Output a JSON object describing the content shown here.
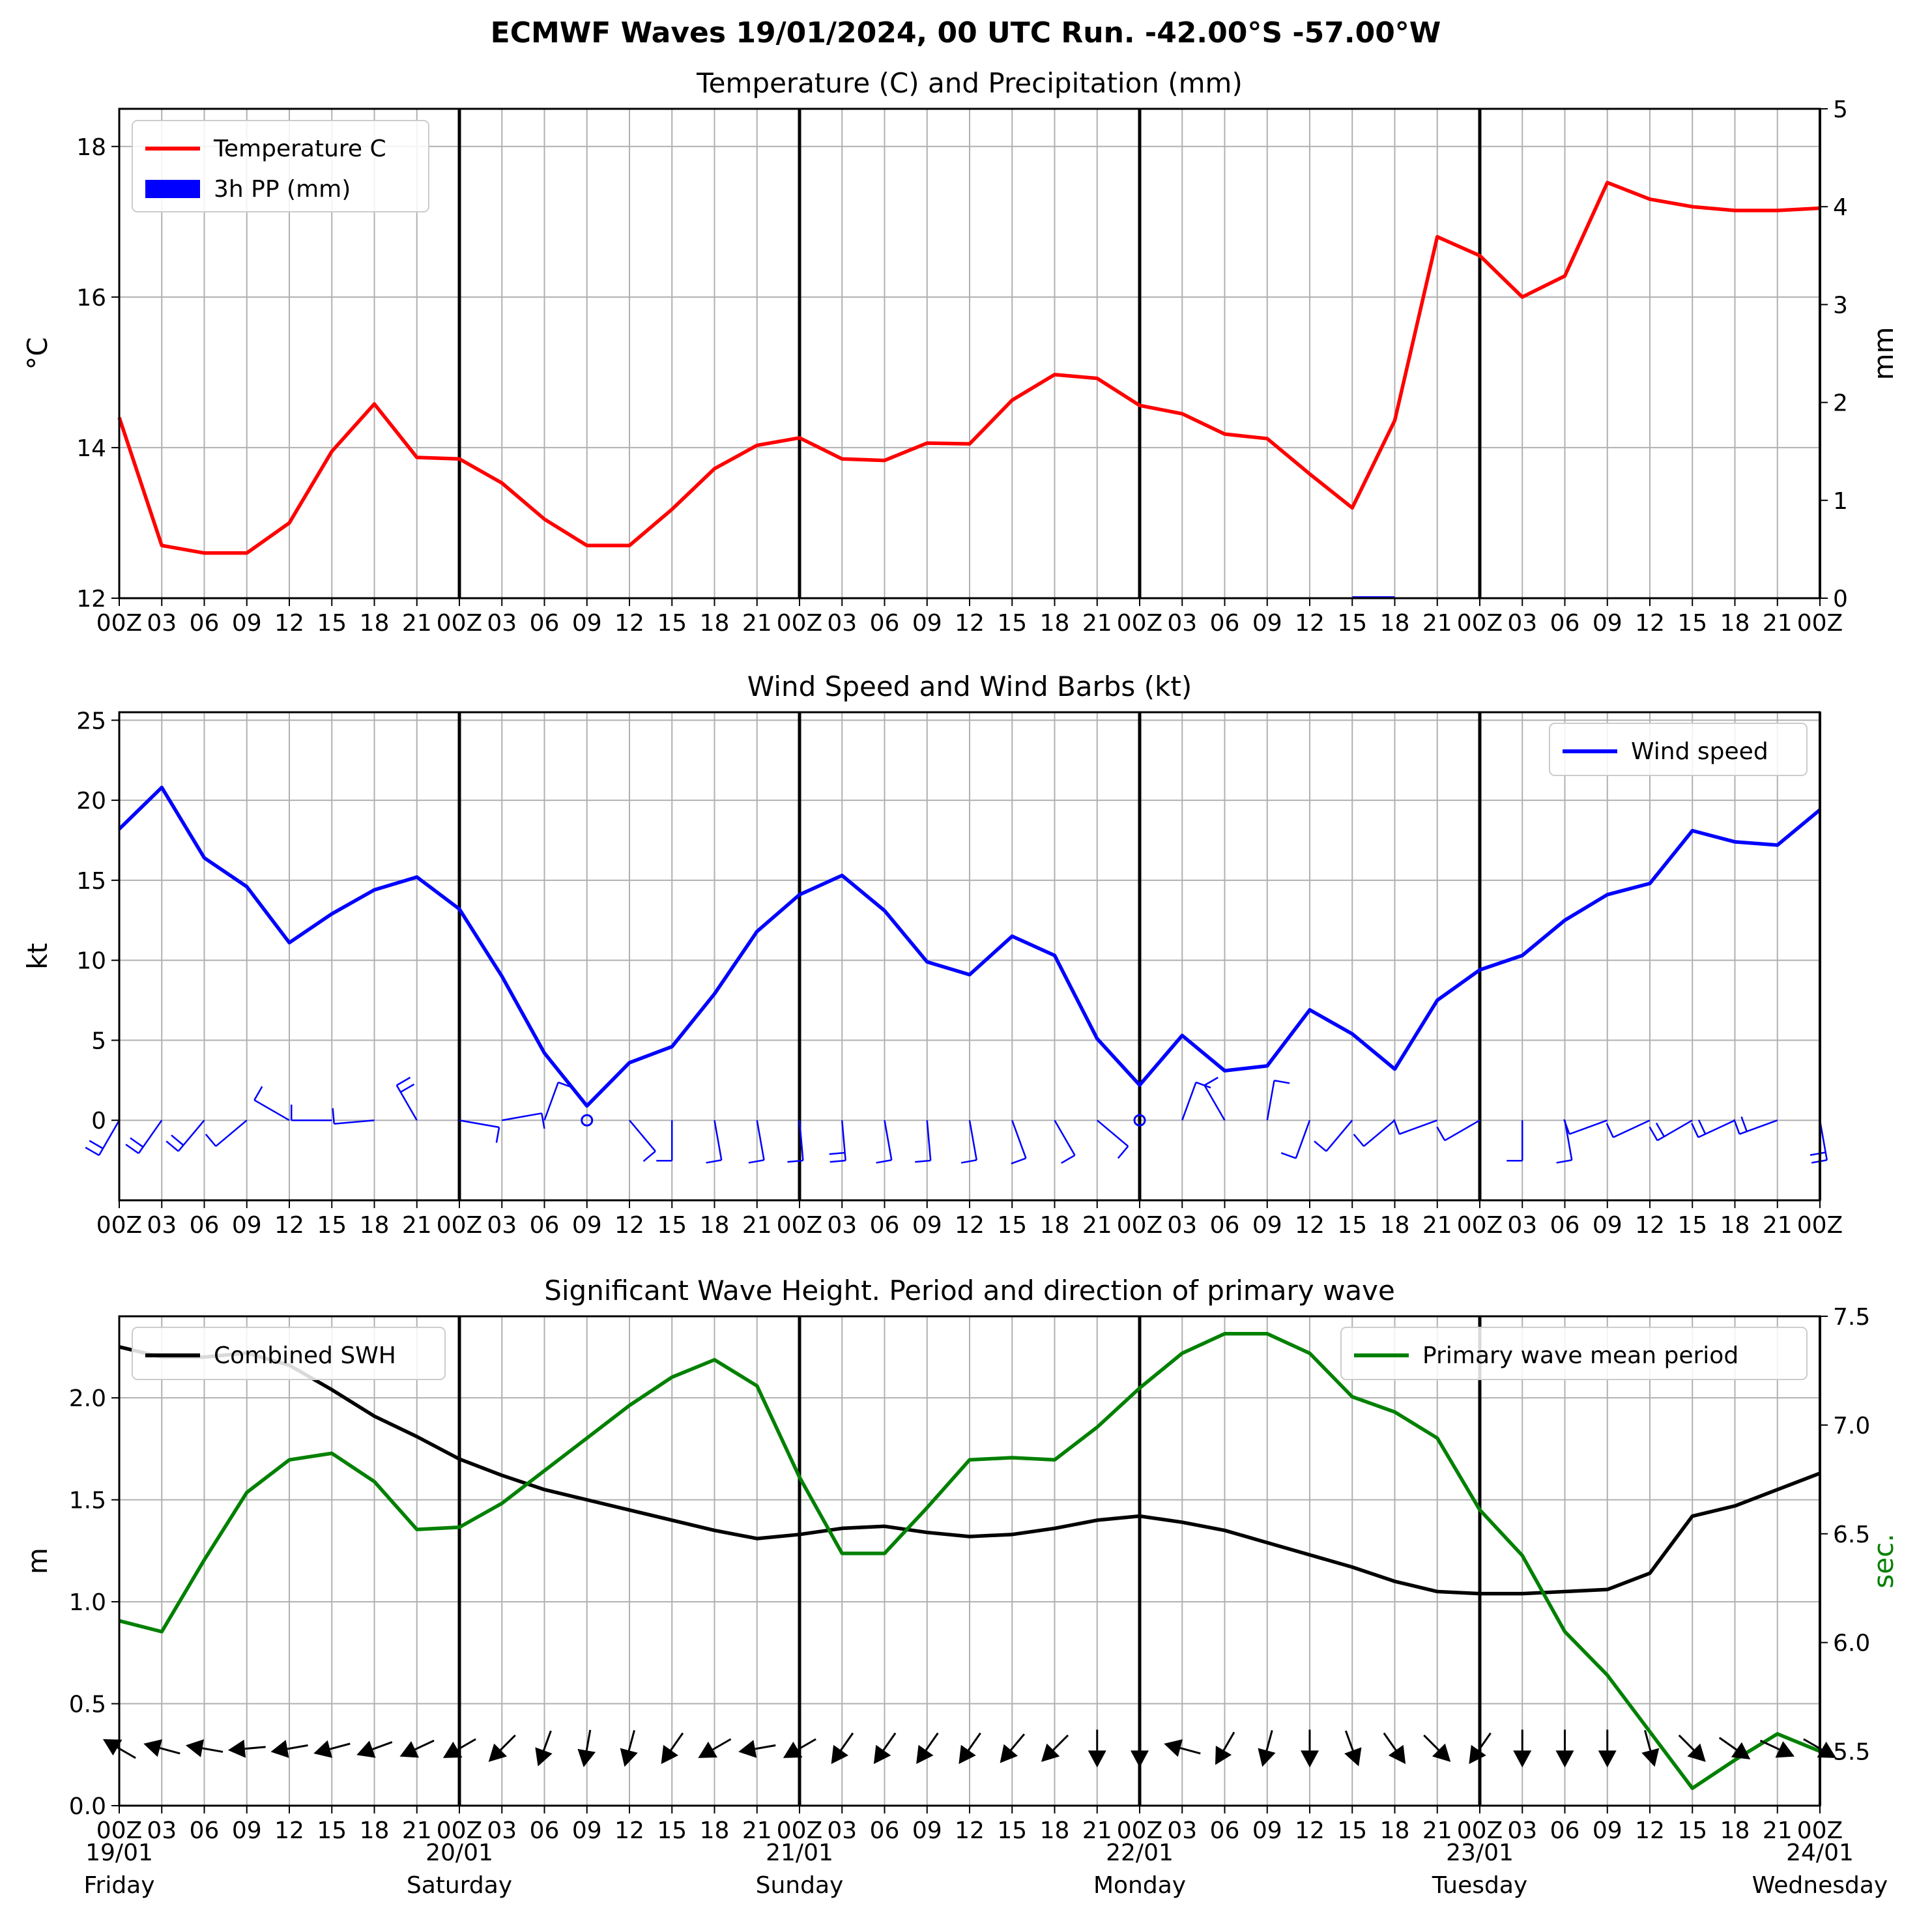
{
  "title": "ECMWF Waves 19/01/2024, 00 UTC Run. -42.00°S -57.00°W",
  "x_tick_labels": [
    "00Z",
    "03",
    "06",
    "09",
    "12",
    "15",
    "18",
    "21",
    "00Z",
    "03",
    "06",
    "09",
    "12",
    "15",
    "18",
    "21",
    "00Z",
    "03",
    "06",
    "09",
    "12",
    "15",
    "18",
    "21",
    "00Z",
    "03",
    "06",
    "09",
    "12",
    "15",
    "18",
    "21",
    "00Z",
    "03",
    "06",
    "09",
    "12",
    "15",
    "18",
    "21",
    "00Z"
  ],
  "day_labels": [
    {
      "date": "19/01",
      "day": "Friday",
      "hour": 0
    },
    {
      "date": "20/01",
      "day": "Saturday",
      "hour": 24
    },
    {
      "date": "21/01",
      "day": "Sunday",
      "hour": 48
    },
    {
      "date": "22/01",
      "day": "Monday",
      "hour": 72
    },
    {
      "date": "23/01",
      "day": "Tuesday",
      "hour": 96
    },
    {
      "date": "24/01",
      "day": "Wednesday",
      "hour": 120
    }
  ],
  "chart_data": [
    {
      "type": "line",
      "title": "Temperature (C) and Precipitation (mm)",
      "ylabel": "°C",
      "y2label": "mm",
      "ylim": [
        12,
        18.5
      ],
      "y2lim": [
        0,
        5
      ],
      "yticks": [
        12,
        14,
        16,
        18
      ],
      "y2ticks": [
        0,
        1,
        2,
        3,
        4,
        5
      ],
      "x_hours": [
        0,
        3,
        6,
        9,
        12,
        15,
        18,
        21,
        24,
        27,
        30,
        33,
        36,
        39,
        42,
        45,
        48,
        51,
        54,
        57,
        60,
        63,
        66,
        69,
        72,
        75,
        78,
        81,
        84,
        87,
        90,
        93,
        96,
        99,
        102,
        105,
        108,
        111,
        114,
        117,
        120
      ],
      "legend": {
        "location": "upper left",
        "entries": [
          "Temperature C",
          "3h PP (mm)"
        ]
      },
      "series": [
        {
          "name": "Temperature C",
          "color": "#ff0000",
          "axis": "left",
          "values": [
            14.4,
            12.7,
            12.6,
            12.6,
            13.0,
            13.95,
            14.58,
            13.87,
            13.85,
            13.53,
            13.05,
            12.7,
            12.7,
            13.18,
            13.72,
            14.03,
            14.13,
            13.85,
            13.83,
            14.06,
            14.05,
            14.63,
            14.97,
            14.92,
            14.56,
            14.45,
            14.18,
            14.12,
            13.65,
            13.2,
            14.36,
            16.8,
            16.55,
            16.0,
            16.28,
            17.52,
            17.3,
            17.2,
            17.15,
            17.15,
            17.18
          ]
        },
        {
          "name": "3h PP (mm)",
          "color": "#0000ff",
          "axis": "right",
          "kind": "bar",
          "values": [
            0,
            0,
            0,
            0,
            0,
            0,
            0,
            0,
            0,
            0,
            0,
            0,
            0,
            0,
            0,
            0,
            0,
            0,
            0,
            0,
            0,
            0,
            0,
            0,
            0,
            0,
            0,
            0,
            0,
            0.02,
            0,
            0,
            0,
            0,
            0,
            0,
            0,
            0,
            0,
            0,
            0
          ]
        }
      ]
    },
    {
      "type": "line",
      "title": "Wind Speed and Wind Barbs (kt)",
      "ylabel": "kt",
      "ylim": [
        -5,
        25.5
      ],
      "yticks": [
        0,
        5,
        10,
        15,
        20,
        25
      ],
      "legend": {
        "location": "upper right",
        "entries": [
          "Wind speed"
        ]
      },
      "series": [
        {
          "name": "Wind speed",
          "color": "#0000ff",
          "values": [
            18.2,
            20.8,
            16.4,
            14.6,
            11.1,
            12.9,
            14.4,
            15.2,
            13.2,
            9.0,
            4.2,
            0.9,
            3.6,
            4.6,
            7.9,
            11.8,
            14.1,
            15.3,
            13.1,
            9.9,
            9.1,
            11.5,
            10.3,
            5.1,
            2.2,
            5.3,
            3.1,
            3.4,
            6.9,
            5.4,
            3.2,
            7.5,
            9.4,
            10.3,
            12.5,
            14.1,
            14.8,
            18.1,
            17.4,
            17.2,
            19.4
          ]
        },
        {
          "name": "Wind barbs",
          "kind": "barb",
          "color": "#0000ff",
          "direction_deg": [
            210,
            215,
            220,
            230,
            300,
            270,
            265,
            330,
            100,
            80,
            20,
            0,
            140,
            180,
            170,
            170,
            175,
            175,
            170,
            175,
            170,
            160,
            150,
            130,
            0,
            20,
            330,
            10,
            200,
            220,
            230,
            250,
            240,
            180,
            170,
            250,
            245,
            240,
            245,
            250,
            170
          ]
        }
      ]
    },
    {
      "type": "line",
      "title": "Significant Wave Height. Period and direction of primary wave",
      "ylabel": "m",
      "y2label": "sec.",
      "ylim": [
        0,
        2.4
      ],
      "y2lim": [
        5.25,
        7.5
      ],
      "yticks": [
        0.0,
        0.5,
        1.0,
        1.5,
        2.0
      ],
      "y2ticks": [
        5.5,
        6.0,
        6.5,
        7.0,
        7.5
      ],
      "legend": [
        {
          "location": "upper left",
          "entries": [
            "Combined SWH"
          ]
        },
        {
          "location": "upper right",
          "entries": [
            "Primary wave mean period"
          ]
        }
      ],
      "series": [
        {
          "name": "Combined SWH",
          "color": "#000000",
          "axis": "left",
          "values": [
            2.25,
            2.2,
            2.2,
            2.22,
            2.16,
            2.04,
            1.91,
            1.81,
            1.7,
            1.62,
            1.55,
            1.5,
            1.45,
            1.4,
            1.35,
            1.31,
            1.33,
            1.36,
            1.37,
            1.34,
            1.32,
            1.33,
            1.36,
            1.4,
            1.42,
            1.39,
            1.35,
            1.29,
            1.23,
            1.17,
            1.1,
            1.05,
            1.04,
            1.04,
            1.05,
            1.06,
            1.14,
            1.42,
            1.47,
            1.55,
            1.63
          ]
        },
        {
          "name": "Primary wave mean period",
          "color": "#008000",
          "axis": "right",
          "values": [
            6.1,
            6.05,
            6.38,
            6.69,
            6.84,
            6.87,
            6.74,
            6.52,
            6.53,
            6.64,
            6.79,
            6.94,
            7.09,
            7.22,
            7.3,
            7.18,
            6.76,
            6.41,
            6.41,
            6.62,
            6.84,
            6.85,
            6.84,
            6.99,
            7.17,
            7.33,
            7.42,
            7.42,
            7.33,
            7.13,
            7.06,
            6.94,
            6.61,
            6.4,
            6.05,
            5.85,
            5.59,
            5.33,
            5.46,
            5.58,
            5.5
          ]
        },
        {
          "name": "Primary wave direction",
          "kind": "arrow",
          "color": "#000000",
          "direction_deg": [
            300,
            285,
            280,
            265,
            260,
            255,
            250,
            245,
            240,
            225,
            200,
            190,
            195,
            215,
            240,
            260,
            240,
            215,
            215,
            215,
            215,
            220,
            225,
            180,
            180,
            285,
            210,
            195,
            180,
            160,
            145,
            135,
            215,
            180,
            180,
            180,
            165,
            135,
            125,
            115,
            120
          ]
        }
      ]
    }
  ]
}
